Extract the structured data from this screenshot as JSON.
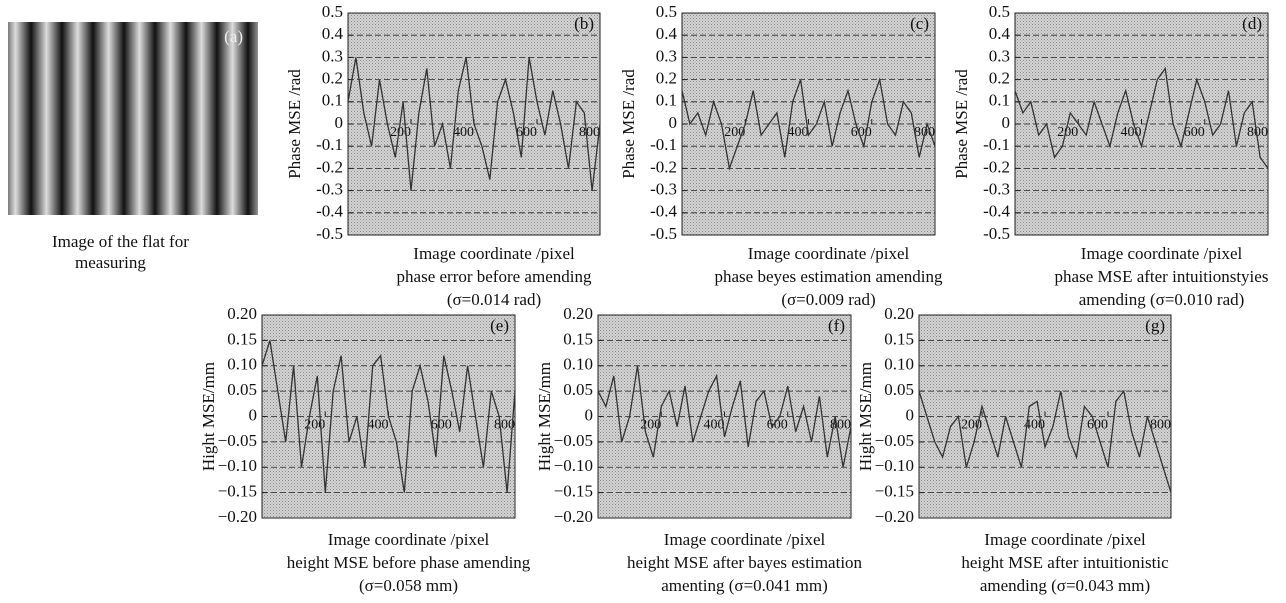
{
  "image": {
    "label": "(a)",
    "caption": [
      "Image of the flat for",
      "measuring"
    ]
  },
  "chart_data": [
    {
      "type": "line",
      "panel": "(b)",
      "ylabel": "Phase MSE /rad",
      "xlabel": "Image coordinate /pixel",
      "caption": [
        "phase error before amending",
        "(σ=0.014 rad)"
      ],
      "xlim": [
        0,
        800
      ],
      "xticks": [
        200,
        400,
        600,
        800
      ],
      "ylim": [
        -0.5,
        0.5
      ],
      "yticks": [
        -0.5,
        -0.4,
        -0.3,
        -0.2,
        -0.1,
        0,
        0.1,
        0.2,
        0.3,
        0.4,
        0.5
      ],
      "grid": true,
      "color": "#333333",
      "x": [
        0,
        25,
        50,
        75,
        100,
        125,
        150,
        175,
        200,
        225,
        250,
        275,
        300,
        325,
        350,
        375,
        400,
        425,
        450,
        475,
        500,
        525,
        550,
        575,
        600,
        625,
        650,
        675,
        700,
        725,
        750,
        775,
        800
      ],
      "values": [
        0.1,
        0.3,
        0.05,
        -0.1,
        0.2,
        0.0,
        -0.15,
        0.1,
        -0.3,
        0.05,
        0.25,
        -0.1,
        0.0,
        -0.2,
        0.15,
        0.3,
        0.0,
        -0.1,
        -0.25,
        0.1,
        0.2,
        0.05,
        -0.15,
        0.3,
        0.1,
        -0.05,
        0.15,
        0.0,
        -0.2,
        0.1,
        0.05,
        -0.3,
        0.0
      ]
    },
    {
      "type": "line",
      "panel": "(c)",
      "ylabel": "Phase MSE /rad",
      "xlabel": "Image coordinate /pixel",
      "caption": [
        "phase beyes estimation amending",
        "(σ=0.009 rad)"
      ],
      "xlim": [
        0,
        800
      ],
      "xticks": [
        200,
        400,
        600,
        800
      ],
      "ylim": [
        -0.5,
        0.5
      ],
      "yticks": [
        -0.5,
        -0.4,
        -0.3,
        -0.2,
        -0.1,
        0,
        0.1,
        0.2,
        0.3,
        0.4,
        0.5
      ],
      "grid": true,
      "color": "#333333",
      "x": [
        0,
        25,
        50,
        75,
        100,
        125,
        150,
        175,
        200,
        225,
        250,
        275,
        300,
        325,
        350,
        375,
        400,
        425,
        450,
        475,
        500,
        525,
        550,
        575,
        600,
        625,
        650,
        675,
        700,
        725,
        750,
        775,
        800
      ],
      "values": [
        0.15,
        0.0,
        0.05,
        -0.05,
        0.1,
        0.0,
        -0.2,
        -0.1,
        0.0,
        0.15,
        -0.05,
        0.0,
        0.05,
        -0.15,
        0.1,
        0.2,
        -0.05,
        0.0,
        0.1,
        -0.1,
        0.05,
        0.15,
        0.0,
        -0.1,
        0.1,
        0.2,
        0.0,
        -0.05,
        0.1,
        0.05,
        -0.15,
        0.0,
        -0.1
      ]
    },
    {
      "type": "line",
      "panel": "(d)",
      "ylabel": "Phase MSE /rad",
      "xlabel": "Image coordinate /pixel",
      "caption": [
        "phase MSE after intuitionstyies",
        "amending (σ=0.010 rad)"
      ],
      "xlim": [
        0,
        800
      ],
      "xticks": [
        200,
        400,
        600,
        800
      ],
      "ylim": [
        -0.5,
        0.5
      ],
      "yticks": [
        -0.5,
        -0.4,
        -0.3,
        -0.2,
        -0.1,
        0,
        0.1,
        0.2,
        0.3,
        0.4,
        0.5
      ],
      "grid": true,
      "color": "#333333",
      "x": [
        0,
        25,
        50,
        75,
        100,
        125,
        150,
        175,
        200,
        225,
        250,
        275,
        300,
        325,
        350,
        375,
        400,
        425,
        450,
        475,
        500,
        525,
        550,
        575,
        600,
        625,
        650,
        675,
        700,
        725,
        750,
        775,
        800
      ],
      "values": [
        0.15,
        0.05,
        0.1,
        -0.05,
        0.0,
        -0.15,
        -0.1,
        0.05,
        0.0,
        -0.05,
        0.1,
        0.0,
        -0.1,
        0.05,
        0.15,
        0.0,
        -0.1,
        0.05,
        0.2,
        0.25,
        0.0,
        -0.1,
        0.05,
        0.2,
        0.1,
        -0.05,
        0.0,
        0.15,
        -0.1,
        0.05,
        0.1,
        -0.15,
        -0.2
      ]
    },
    {
      "type": "line",
      "panel": "(e)",
      "ylabel": "Hight MSE/mm",
      "xlabel": "Image coordinate /pixel",
      "caption": [
        "height MSE before phase amending",
        "(σ=0.058 mm)"
      ],
      "xlim": [
        0,
        800
      ],
      "xticks": [
        200,
        400,
        600,
        800
      ],
      "ylim": [
        -0.2,
        0.2
      ],
      "yticks": [
        {
          "value": -0.2,
          "label": "−0.20"
        },
        {
          "value": -0.15,
          "label": "−0.15"
        },
        {
          "value": -0.1,
          "label": "−0.10"
        },
        {
          "value": -0.05,
          "label": "−0.05"
        },
        0,
        0.05,
        {
          "value": 0.1,
          "label": "0.10"
        },
        0.15,
        {
          "value": 0.2,
          "label": "0.20"
        }
      ],
      "grid": true,
      "color": "#333333",
      "x": [
        0,
        25,
        50,
        75,
        100,
        125,
        150,
        175,
        200,
        225,
        250,
        275,
        300,
        325,
        350,
        375,
        400,
        425,
        450,
        475,
        500,
        525,
        550,
        575,
        600,
        625,
        650,
        675,
        700,
        725,
        750,
        775,
        800
      ],
      "values": [
        0.1,
        0.15,
        0.05,
        -0.05,
        0.1,
        -0.1,
        0.0,
        0.08,
        -0.15,
        0.05,
        0.12,
        -0.05,
        0.0,
        -0.1,
        0.1,
        0.12,
        0.0,
        -0.05,
        -0.15,
        0.05,
        0.1,
        0.03,
        -0.08,
        0.12,
        0.05,
        -0.03,
        0.1,
        0.0,
        -0.1,
        0.05,
        0.0,
        -0.15,
        0.05
      ]
    },
    {
      "type": "line",
      "panel": "(f)",
      "ylabel": "Hight MSE/mm",
      "xlabel": "Image coordinate /pixel",
      "caption": [
        "height MSE after bayes estimation",
        "amenting (σ=0.041 mm)"
      ],
      "xlim": [
        0,
        800
      ],
      "xticks": [
        200,
        400,
        600,
        800
      ],
      "ylim": [
        -0.2,
        0.2
      ],
      "yticks": [
        {
          "value": -0.2,
          "label": "−0.20"
        },
        {
          "value": -0.15,
          "label": "−0.15"
        },
        {
          "value": -0.1,
          "label": "−0.10"
        },
        {
          "value": -0.05,
          "label": "−0.05"
        },
        0,
        0.05,
        {
          "value": 0.1,
          "label": "0.10"
        },
        0.15,
        {
          "value": 0.2,
          "label": "0.20"
        }
      ],
      "grid": true,
      "color": "#333333",
      "x": [
        0,
        25,
        50,
        75,
        100,
        125,
        150,
        175,
        200,
        225,
        250,
        275,
        300,
        325,
        350,
        375,
        400,
        425,
        450,
        475,
        500,
        525,
        550,
        575,
        600,
        625,
        650,
        675,
        700,
        725,
        750,
        775,
        800
      ],
      "values": [
        0.05,
        0.02,
        0.08,
        -0.05,
        0.0,
        0.1,
        -0.03,
        -0.08,
        0.02,
        0.05,
        -0.02,
        0.06,
        -0.05,
        0.0,
        0.05,
        0.08,
        -0.04,
        0.02,
        0.07,
        -0.06,
        0.03,
        0.05,
        -0.02,
        0.0,
        0.06,
        -0.03,
        0.02,
        -0.05,
        0.04,
        -0.08,
        0.0,
        -0.1,
        -0.02
      ]
    },
    {
      "type": "line",
      "panel": "(g)",
      "ylabel": "Hight MSE/mm",
      "xlabel": "Image coordinate /pixel",
      "caption": [
        "height MSE after intuitionistic",
        "amending (σ=0.043 mm)"
      ],
      "xlim": [
        0,
        800
      ],
      "xticks": [
        200,
        400,
        600,
        800
      ],
      "ylim": [
        -0.2,
        0.2
      ],
      "yticks": [
        {
          "value": -0.2,
          "label": "−0.20"
        },
        {
          "value": -0.15,
          "label": "−0.15"
        },
        {
          "value": -0.1,
          "label": "−0.10"
        },
        {
          "value": -0.05,
          "label": "−0.05"
        },
        0,
        0.05,
        {
          "value": 0.1,
          "label": "0.10"
        },
        0.15,
        {
          "value": 0.2,
          "label": "0.20"
        }
      ],
      "grid": true,
      "color": "#333333",
      "x": [
        0,
        25,
        50,
        75,
        100,
        125,
        150,
        175,
        200,
        225,
        250,
        275,
        300,
        325,
        350,
        375,
        400,
        425,
        450,
        475,
        500,
        525,
        550,
        575,
        600,
        625,
        650,
        675,
        700,
        725,
        750,
        775,
        800
      ],
      "values": [
        0.05,
        0.0,
        -0.05,
        -0.08,
        -0.02,
        0.0,
        -0.1,
        -0.05,
        0.02,
        -0.03,
        -0.08,
        0.0,
        -0.05,
        -0.1,
        0.02,
        0.03,
        -0.06,
        -0.02,
        0.05,
        -0.04,
        -0.08,
        0.02,
        0.0,
        -0.05,
        -0.1,
        0.03,
        0.05,
        -0.03,
        -0.08,
        0.0,
        -0.05,
        -0.1,
        -0.15
      ]
    }
  ]
}
